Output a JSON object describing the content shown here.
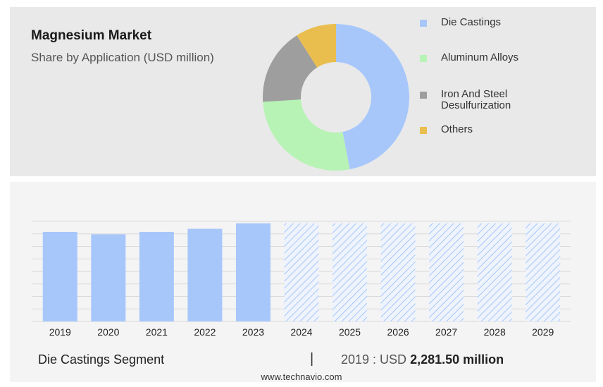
{
  "header": {
    "title": "Magnesium Market",
    "subtitle": "Share by Application (USD million)"
  },
  "chart_data": [
    {
      "type": "pie",
      "donut": true,
      "labels": [
        "Die Castings",
        "Aluminum Alloys",
        "Iron And Steel Desulfurization",
        "Others"
      ],
      "values": [
        47,
        27,
        17,
        9
      ],
      "colors": [
        "#a7c7fb",
        "#b7f3b5",
        "#9e9e9e",
        "#e9be4e"
      ],
      "legend": "right"
    },
    {
      "type": "bar",
      "categories": [
        "2019",
        "2020",
        "2021",
        "2022",
        "2023",
        "2024",
        "2025",
        "2026",
        "2027",
        "2028",
        "2029"
      ],
      "values": [
        2281.5,
        2220,
        2280,
        2360,
        2500,
        2500,
        2500,
        2500,
        2500,
        2500,
        2500
      ],
      "forecast_from": "2024",
      "ylim": [
        0,
        2550
      ],
      "grid": true,
      "bar_color": "#a7c7fb",
      "forecast_pattern": "hatched"
    }
  ],
  "footer": {
    "segment": "Die Castings Segment",
    "separator": "|",
    "year_prefix": "2019 : USD",
    "value": "2,281.50 million"
  },
  "source": "www.technavio.com"
}
